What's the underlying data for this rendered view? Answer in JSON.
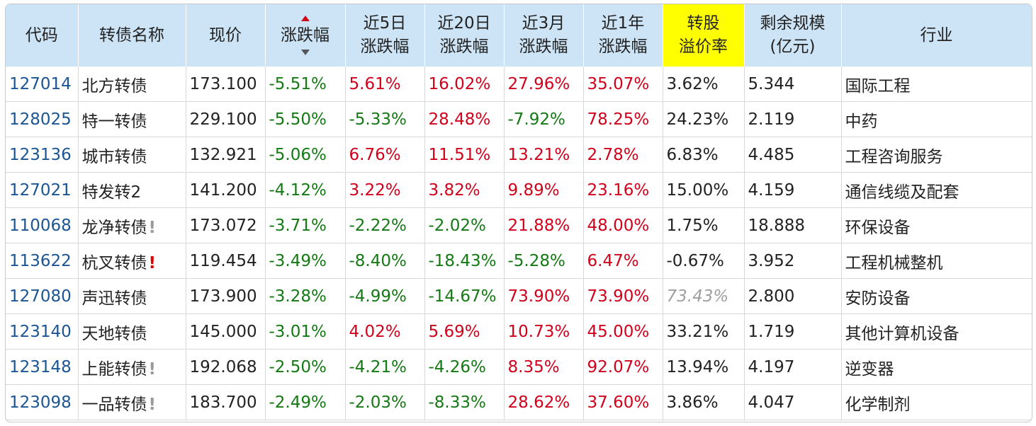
{
  "table": {
    "columns": [
      "代码",
      "转债名称",
      "现价",
      "涨跌幅",
      "近5日\n涨跌幅",
      "近20日\n涨跌幅",
      "近3月\n涨跌幅",
      "近1年\n涨跌幅",
      "转股\n溢价率",
      "剩余规模\n(亿元)",
      "行业"
    ],
    "highlight_column": 8,
    "sorted_column": 3,
    "rows": [
      [
        "127014",
        "北方转债",
        "173.100",
        "-5.51%",
        "5.61%",
        "16.02%",
        "27.96%",
        "35.07%",
        "3.62%",
        "5.344",
        "国际工程"
      ],
      [
        "128025",
        "特一转债",
        "229.100",
        "-5.50%",
        "-5.33%",
        "28.48%",
        "-7.92%",
        "78.25%",
        "24.23%",
        "2.119",
        "中药"
      ],
      [
        "123136",
        "城市转债",
        "132.921",
        "-5.06%",
        "6.76%",
        "11.51%",
        "13.21%",
        "2.78%",
        "6.83%",
        "4.485",
        "工程咨询服务"
      ],
      [
        "127021",
        "特发转2",
        "141.200",
        "-4.12%",
        "3.22%",
        "3.82%",
        "9.89%",
        "23.16%",
        "15.00%",
        "4.159",
        "通信线缆及配套"
      ],
      [
        "110068",
        {
          "text": "龙净转债",
          "flag": "!",
          "flag_color": "#999999"
        },
        "173.072",
        "-3.71%",
        "-2.22%",
        "-2.02%",
        "21.88%",
        "48.00%",
        "1.75%",
        "18.888",
        "环保设备"
      ],
      [
        "113622",
        {
          "text": "杭叉转债",
          "flag": "!",
          "flag_color": "#e00000"
        },
        "119.454",
        "-3.49%",
        "-8.40%",
        "-18.43%",
        "-5.28%",
        "6.47%",
        "-0.67%",
        "3.952",
        "工程机械整机"
      ],
      [
        "127080",
        "声迅转债",
        "173.900",
        "-3.28%",
        "-4.99%",
        "-14.67%",
        "73.90%",
        "73.90%",
        {
          "text": "73.43%",
          "muted": true
        },
        "2.800",
        "安防设备"
      ],
      [
        "123140",
        "天地转债",
        "145.000",
        "-3.01%",
        "4.02%",
        "5.69%",
        "10.73%",
        "45.00%",
        "33.21%",
        "1.719",
        "其他计算机设备"
      ],
      [
        "123148",
        {
          "text": "上能转债",
          "flag": "!",
          "flag_color": "#999999"
        },
        "192.068",
        "-2.50%",
        "-4.21%",
        "-4.26%",
        "8.35%",
        "92.07%",
        "13.94%",
        "4.197",
        "逆变器"
      ],
      [
        "123098",
        {
          "text": "一品转债",
          "flag": "!",
          "flag_color": "#999999"
        },
        "183.700",
        "-2.49%",
        "-2.03%",
        "-8.33%",
        "28.62%",
        "37.60%",
        "3.86%",
        "4.047",
        "化学制剂"
      ]
    ]
  }
}
